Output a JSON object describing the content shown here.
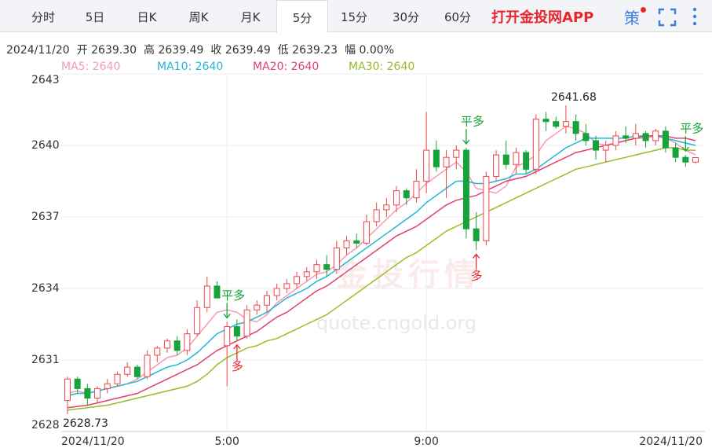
{
  "toolbar": {
    "tabs": [
      "分时",
      "5日",
      "日K",
      "周K",
      "月K",
      "5分",
      "15分",
      "30分",
      "60分"
    ],
    "active": 5,
    "app_link": "打开金投网APP",
    "strategy": "策"
  },
  "chart_data": {
    "type": "candlestick",
    "info": [
      "2024/11/20",
      "开 2639.30",
      "高 2639.49",
      "收 2639.49",
      "低 2639.23",
      "幅 0.00%"
    ],
    "categories": [
      "2024/11/20",
      null,
      null,
      null,
      null,
      null,
      null,
      null,
      null,
      null,
      null,
      null,
      null,
      null,
      null,
      null,
      "5:00",
      null,
      null,
      null,
      null,
      null,
      null,
      null,
      null,
      null,
      null,
      null,
      null,
      null,
      null,
      null,
      null,
      null,
      null,
      null,
      "9:00",
      null,
      null,
      null,
      null,
      null,
      null,
      null,
      null,
      null,
      null,
      null,
      null,
      null,
      null,
      null,
      null,
      null,
      null,
      null,
      null,
      null,
      null,
      null,
      null,
      null,
      null,
      "2024/11/20"
    ],
    "ohlc": {
      "open": [
        2629.3,
        2630.2,
        2629.8,
        2629.4,
        2629.8,
        2630.0,
        2630.4,
        2630.7,
        2630.3,
        2631.2,
        2631.5,
        2631.8,
        2631.4,
        2632.1,
        2633.2,
        2634.1,
        2631.6,
        2632.4,
        2632.0,
        2633.1,
        2633.3,
        2633.7,
        2634.0,
        2634.2,
        2634.5,
        2634.7,
        2635.0,
        2634.8,
        2635.7,
        2636.0,
        2635.9,
        2636.8,
        2637.3,
        2637.5,
        2638.1,
        2637.8,
        2638.5,
        2639.8,
        2639.1,
        2639.5,
        2639.8,
        2636.5,
        2636.0,
        2638.7,
        2639.6,
        2639.2,
        2639.7,
        2639.0,
        2641.1,
        2641.0,
        2640.8,
        2641.0,
        2640.5,
        2640.2,
        2639.8,
        2640.0,
        2640.4,
        2640.3,
        2640.5,
        2640.2,
        2640.6,
        2639.9,
        2639.5,
        2639.3
      ],
      "high": [
        2630.3,
        2630.3,
        2630.0,
        2629.9,
        2630.2,
        2630.5,
        2630.9,
        2630.8,
        2631.4,
        2631.6,
        2631.9,
        2632.0,
        2632.3,
        2633.5,
        2634.5,
        2634.3,
        2632.6,
        2632.7,
        2633.3,
        2633.5,
        2633.9,
        2634.2,
        2634.4,
        2634.7,
        2634.9,
        2635.2,
        2635.4,
        2636.0,
        2636.2,
        2636.3,
        2637.1,
        2637.6,
        2637.8,
        2638.3,
        2638.2,
        2639.0,
        2641.4,
        2640.2,
        2639.8,
        2640.0,
        2639.9,
        2637.2,
        2638.9,
        2639.8,
        2640.2,
        2639.9,
        2639.8,
        2641.3,
        2641.4,
        2641.2,
        2641.68,
        2641.3,
        2640.9,
        2640.4,
        2640.2,
        2640.6,
        2640.8,
        2640.9,
        2640.6,
        2640.7,
        2640.8,
        2640.1,
        2639.6,
        2639.49
      ],
      "low": [
        2628.73,
        2629.6,
        2629.1,
        2629.2,
        2629.6,
        2629.9,
        2630.3,
        2630.2,
        2630.2,
        2630.9,
        2631.3,
        2631.2,
        2631.2,
        2632.0,
        2633.0,
        2633.6,
        2629.9,
        2631.8,
        2631.9,
        2632.9,
        2633.0,
        2633.5,
        2633.8,
        2634.0,
        2634.3,
        2634.4,
        2634.5,
        2634.6,
        2635.4,
        2635.7,
        2635.8,
        2636.6,
        2637.0,
        2637.2,
        2637.5,
        2637.6,
        2638.0,
        2638.9,
        2637.8,
        2639.0,
        2636.1,
        2635.6,
        2635.8,
        2638.5,
        2639.0,
        2638.8,
        2638.8,
        2638.8,
        2640.6,
        2640.7,
        2640.5,
        2640.2,
        2640.0,
        2639.4,
        2639.3,
        2639.8,
        2640.1,
        2640.0,
        2639.9,
        2640.0,
        2639.7,
        2639.3,
        2639.1,
        2639.23
      ],
      "close": [
        2630.2,
        2629.8,
        2629.4,
        2629.8,
        2630.0,
        2630.4,
        2630.7,
        2630.3,
        2631.2,
        2631.5,
        2631.8,
        2631.4,
        2632.1,
        2633.2,
        2634.1,
        2633.6,
        2632.4,
        2632.0,
        2633.1,
        2633.3,
        2633.7,
        2634.0,
        2634.2,
        2634.5,
        2634.7,
        2635.0,
        2634.8,
        2635.7,
        2636.0,
        2635.9,
        2636.8,
        2637.3,
        2637.5,
        2638.1,
        2637.8,
        2638.5,
        2639.8,
        2639.1,
        2639.5,
        2639.8,
        2636.5,
        2636.0,
        2638.7,
        2639.6,
        2639.2,
        2639.7,
        2639.0,
        2641.1,
        2641.0,
        2640.8,
        2641.0,
        2640.5,
        2640.2,
        2639.8,
        2640.0,
        2640.4,
        2640.3,
        2640.5,
        2640.2,
        2640.6,
        2639.9,
        2639.5,
        2639.3,
        2639.49
      ]
    },
    "up_color": "#f0454a",
    "down_color": "#17a23a",
    "series": [
      {
        "name": "MA5: 2640",
        "color": "#f49ab4",
        "values": [
          2629.6,
          2629.7,
          2629.6,
          2629.7,
          2629.8,
          2629.9,
          2630.0,
          2630.2,
          2630.5,
          2630.8,
          2631.1,
          2631.2,
          2631.5,
          2632.0,
          2632.5,
          2633.0,
          2633.1,
          2633.0,
          2632.7,
          2632.6,
          2632.9,
          2633.4,
          2633.7,
          2634.0,
          2634.3,
          2634.6,
          2634.7,
          2635.0,
          2635.4,
          2635.7,
          2636.1,
          2636.5,
          2636.9,
          2637.3,
          2637.6,
          2638.0,
          2638.4,
          2638.7,
          2639.0,
          2639.3,
          2638.9,
          2638.2,
          2638.1,
          2638.0,
          2638.3,
          2639.1,
          2639.3,
          2639.6,
          2640.2,
          2640.5,
          2640.8,
          2640.7,
          2640.5,
          2640.1,
          2640.0,
          2640.1,
          2640.2,
          2640.3,
          2640.3,
          2640.4,
          2640.3,
          2640.1,
          2639.8,
          2639.6
        ]
      },
      {
        "name": "MA10: 2640",
        "color": "#22b6d4",
        "values": [
          2629.5,
          2629.6,
          2629.6,
          2629.7,
          2629.8,
          2629.9,
          2630.0,
          2630.1,
          2630.3,
          2630.5,
          2630.7,
          2630.8,
          2631.0,
          2631.3,
          2631.7,
          2632.1,
          2632.3,
          2632.5,
          2632.6,
          2632.8,
          2633.0,
          2633.3,
          2633.6,
          2633.8,
          2634.0,
          2634.3,
          2634.5,
          2634.8,
          2635.1,
          2635.4,
          2635.7,
          2636.0,
          2636.3,
          2636.6,
          2636.9,
          2637.2,
          2637.6,
          2637.9,
          2638.2,
          2638.5,
          2638.5,
          2638.4,
          2638.4,
          2638.5,
          2638.6,
          2638.8,
          2638.8,
          2639.0,
          2639.3,
          2639.6,
          2639.9,
          2640.1,
          2640.3,
          2640.3,
          2640.3,
          2640.3,
          2640.3,
          2640.4,
          2640.4,
          2640.4,
          2640.3,
          2640.2,
          2640.1,
          2640.0
        ]
      },
      {
        "name": "MA20: 2640",
        "color": "#e2406c",
        "values": [
          2629.0,
          2629.05,
          2629.1,
          2629.2,
          2629.3,
          2629.4,
          2629.5,
          2629.6,
          2629.8,
          2630.0,
          2630.2,
          2630.4,
          2630.6,
          2630.8,
          2631.1,
          2631.4,
          2631.6,
          2631.8,
          2632.0,
          2632.2,
          2632.5,
          2632.8,
          2633.0,
          2633.3,
          2633.6,
          2633.9,
          2634.1,
          2634.4,
          2634.7,
          2635.0,
          2635.3,
          2635.6,
          2635.9,
          2636.2,
          2636.4,
          2636.6,
          2636.9,
          2637.2,
          2637.5,
          2637.7,
          2637.8,
          2637.9,
          2638.1,
          2638.3,
          2638.5,
          2638.6,
          2638.7,
          2638.9,
          2639.1,
          2639.3,
          2639.5,
          2639.7,
          2639.8,
          2639.9,
          2640.0,
          2640.1,
          2640.2,
          2640.3,
          2640.4,
          2640.4,
          2640.4,
          2640.3,
          2640.3,
          2640.2
        ]
      },
      {
        "name": "MA30: 2640",
        "color": "#97bd26",
        "values": [
          2628.9,
          2628.95,
          2629.0,
          2629.05,
          2629.1,
          2629.2,
          2629.3,
          2629.4,
          2629.5,
          2629.6,
          2629.7,
          2629.8,
          2629.9,
          2630.1,
          2630.4,
          2630.8,
          2631.1,
          2631.3,
          2631.5,
          2631.6,
          2631.8,
          2631.9,
          2632.1,
          2632.3,
          2632.5,
          2632.7,
          2632.9,
          2633.2,
          2633.5,
          2633.8,
          2634.1,
          2634.4,
          2634.7,
          2635.0,
          2635.3,
          2635.5,
          2635.8,
          2636.1,
          2636.4,
          2636.6,
          2636.8,
          2637.0,
          2637.2,
          2637.4,
          2637.6,
          2637.8,
          2638.0,
          2638.2,
          2638.4,
          2638.6,
          2638.8,
          2639.0,
          2639.1,
          2639.2,
          2639.3,
          2639.4,
          2639.5,
          2639.6,
          2639.7,
          2639.8,
          2639.9,
          2639.9,
          2639.8,
          2639.8
        ]
      }
    ],
    "ylim": [
      2628,
      2643
    ],
    "yticks": [
      2628,
      2631,
      2634,
      2637,
      2640,
      2643
    ],
    "grid": true,
    "extremes": [
      {
        "value": 2628.73,
        "index": 0,
        "position": "below"
      },
      {
        "value": 2641.68,
        "index": 50,
        "position": "above"
      }
    ],
    "signals": [
      {
        "label": "平多",
        "index": 16,
        "position": "above",
        "color": "#17a23a"
      },
      {
        "label": "多",
        "index": 17,
        "position": "below",
        "color": "#e8262c"
      },
      {
        "label": "平多",
        "index": 40,
        "position": "above",
        "color": "#17a23a"
      },
      {
        "label": "多",
        "index": 41,
        "position": "below",
        "color": "#e8262c"
      },
      {
        "label": "平多",
        "index": 62,
        "position": "above",
        "color": "#17a23a"
      }
    ],
    "watermark": [
      "金投行情",
      "quote.cngold.org"
    ]
  }
}
